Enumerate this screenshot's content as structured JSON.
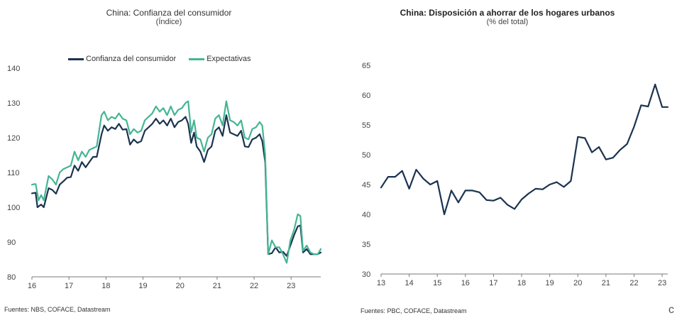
{
  "chart_data": [
    {
      "type": "line",
      "title": "China: Confianza del consumidor",
      "subtitle": "(Índice)",
      "source": "Fuentes: NBS, COFACE, Datastream",
      "ylim": [
        80,
        140
      ],
      "yticks": [
        80,
        90,
        100,
        110,
        120,
        130,
        140
      ],
      "xlim": [
        2016.0,
        2023.8
      ],
      "xticks": [
        {
          "label": "16",
          "x": 2016
        },
        {
          "label": "17",
          "x": 2017
        },
        {
          "label": "18",
          "x": 2018
        },
        {
          "label": "19",
          "x": 2019
        },
        {
          "label": "20",
          "x": 2020
        },
        {
          "label": "21",
          "x": 2021
        },
        {
          "label": "22",
          "x": 2022
        },
        {
          "label": "23",
          "x": 2023
        }
      ],
      "legend_position": "top",
      "grid": false,
      "series": [
        {
          "name": "Confianza del consumidor",
          "color": "#1b3350",
          "points": [
            [
              2016.0,
              104.0
            ],
            [
              2016.1,
              104.2
            ],
            [
              2016.15,
              100.0
            ],
            [
              2016.25,
              100.8
            ],
            [
              2016.32,
              100.0
            ],
            [
              2016.45,
              105.5
            ],
            [
              2016.55,
              105.0
            ],
            [
              2016.65,
              103.9
            ],
            [
              2016.75,
              106.5
            ],
            [
              2016.85,
              107.5
            ],
            [
              2016.95,
              108.5
            ],
            [
              2017.05,
              108.7
            ],
            [
              2017.15,
              112.0
            ],
            [
              2017.25,
              110.5
            ],
            [
              2017.35,
              113.0
            ],
            [
              2017.45,
              111.5
            ],
            [
              2017.55,
              113.0
            ],
            [
              2017.65,
              114.5
            ],
            [
              2017.75,
              114.5
            ],
            [
              2017.88,
              121.0
            ],
            [
              2017.95,
              123.5
            ],
            [
              2018.05,
              122.0
            ],
            [
              2018.15,
              123.0
            ],
            [
              2018.25,
              122.5
            ],
            [
              2018.35,
              124.0
            ],
            [
              2018.45,
              122.3
            ],
            [
              2018.55,
              122.5
            ],
            [
              2018.65,
              118.0
            ],
            [
              2018.75,
              119.5
            ],
            [
              2018.85,
              118.5
            ],
            [
              2018.95,
              119.0
            ],
            [
              2019.05,
              122.0
            ],
            [
              2019.15,
              123.0
            ],
            [
              2019.25,
              124.0
            ],
            [
              2019.35,
              125.5
            ],
            [
              2019.45,
              124.0
            ],
            [
              2019.55,
              125.0
            ],
            [
              2019.65,
              123.5
            ],
            [
              2019.75,
              125.5
            ],
            [
              2019.85,
              123.0
            ],
            [
              2019.95,
              124.5
            ],
            [
              2020.05,
              125.0
            ],
            [
              2020.15,
              126.0
            ],
            [
              2020.22,
              124.0
            ],
            [
              2020.3,
              118.5
            ],
            [
              2020.38,
              121.5
            ],
            [
              2020.45,
              117.5
            ],
            [
              2020.55,
              116.0
            ],
            [
              2020.65,
              113.0
            ],
            [
              2020.75,
              116.5
            ],
            [
              2020.85,
              117.5
            ],
            [
              2020.95,
              122.0
            ],
            [
              2021.05,
              123.0
            ],
            [
              2021.15,
              120.5
            ],
            [
              2021.25,
              126.5
            ],
            [
              2021.35,
              121.5
            ],
            [
              2021.45,
              121.0
            ],
            [
              2021.55,
              120.5
            ],
            [
              2021.65,
              122.0
            ],
            [
              2021.75,
              117.5
            ],
            [
              2021.85,
              117.3
            ],
            [
              2021.95,
              119.5
            ],
            [
              2022.05,
              120.0
            ],
            [
              2022.15,
              121.0
            ],
            [
              2022.22,
              119.0
            ],
            [
              2022.3,
              113.0
            ],
            [
              2022.38,
              86.5
            ],
            [
              2022.48,
              86.8
            ],
            [
              2022.58,
              88.5
            ],
            [
              2022.68,
              87.0
            ],
            [
              2022.78,
              87.2
            ],
            [
              2022.88,
              86.0
            ],
            [
              2022.98,
              89.0
            ],
            [
              2023.08,
              92.0
            ],
            [
              2023.18,
              94.5
            ],
            [
              2023.25,
              94.8
            ],
            [
              2023.32,
              87.0
            ],
            [
              2023.42,
              88.0
            ],
            [
              2023.52,
              86.5
            ],
            [
              2023.62,
              86.5
            ],
            [
              2023.72,
              86.5
            ],
            [
              2023.8,
              87.0
            ]
          ]
        },
        {
          "name": "Expectativas",
          "color": "#45b594",
          "points": [
            [
              2016.0,
              106.5
            ],
            [
              2016.1,
              106.7
            ],
            [
              2016.18,
              102.0
            ],
            [
              2016.25,
              103.5
            ],
            [
              2016.32,
              102.0
            ],
            [
              2016.45,
              109.0
            ],
            [
              2016.55,
              108.0
            ],
            [
              2016.65,
              106.5
            ],
            [
              2016.75,
              110.0
            ],
            [
              2016.85,
              111.0
            ],
            [
              2016.95,
              111.5
            ],
            [
              2017.05,
              112.0
            ],
            [
              2017.15,
              116.0
            ],
            [
              2017.25,
              113.5
            ],
            [
              2017.35,
              116.0
            ],
            [
              2017.45,
              114.5
            ],
            [
              2017.55,
              116.5
            ],
            [
              2017.65,
              117.0
            ],
            [
              2017.75,
              117.5
            ],
            [
              2017.88,
              126.5
            ],
            [
              2017.95,
              127.5
            ],
            [
              2018.05,
              125.0
            ],
            [
              2018.15,
              126.0
            ],
            [
              2018.25,
              125.5
            ],
            [
              2018.35,
              127.0
            ],
            [
              2018.45,
              125.5
            ],
            [
              2018.55,
              125.0
            ],
            [
              2018.65,
              121.0
            ],
            [
              2018.75,
              122.5
            ],
            [
              2018.85,
              121.5
            ],
            [
              2018.95,
              122.0
            ],
            [
              2019.05,
              125.0
            ],
            [
              2019.15,
              126.0
            ],
            [
              2019.25,
              127.0
            ],
            [
              2019.35,
              129.0
            ],
            [
              2019.45,
              127.5
            ],
            [
              2019.55,
              128.5
            ],
            [
              2019.65,
              126.5
            ],
            [
              2019.75,
              129.0
            ],
            [
              2019.85,
              126.5
            ],
            [
              2019.95,
              128.0
            ],
            [
              2020.05,
              128.5
            ],
            [
              2020.15,
              130.0
            ],
            [
              2020.22,
              130.5
            ],
            [
              2020.3,
              121.5
            ],
            [
              2020.38,
              125.0
            ],
            [
              2020.45,
              120.0
            ],
            [
              2020.55,
              119.5
            ],
            [
              2020.65,
              116.0
            ],
            [
              2020.75,
              120.0
            ],
            [
              2020.85,
              121.0
            ],
            [
              2020.95,
              125.5
            ],
            [
              2021.05,
              126.5
            ],
            [
              2021.15,
              123.5
            ],
            [
              2021.25,
              130.5
            ],
            [
              2021.35,
              125.0
            ],
            [
              2021.45,
              124.5
            ],
            [
              2021.55,
              123.5
            ],
            [
              2021.65,
              125.0
            ],
            [
              2021.75,
              120.0
            ],
            [
              2021.85,
              119.5
            ],
            [
              2021.95,
              122.5
            ],
            [
              2022.05,
              123.0
            ],
            [
              2022.15,
              124.5
            ],
            [
              2022.22,
              123.5
            ],
            [
              2022.3,
              115.0
            ],
            [
              2022.38,
              86.5
            ],
            [
              2022.48,
              90.5
            ],
            [
              2022.58,
              88.5
            ],
            [
              2022.68,
              88.5
            ],
            [
              2022.78,
              86.5
            ],
            [
              2022.88,
              84.0
            ],
            [
              2022.98,
              90.5
            ],
            [
              2023.08,
              93.5
            ],
            [
              2023.18,
              98.0
            ],
            [
              2023.25,
              97.5
            ],
            [
              2023.32,
              87.5
            ],
            [
              2023.42,
              89.0
            ],
            [
              2023.52,
              87.0
            ],
            [
              2023.62,
              86.5
            ],
            [
              2023.72,
              86.5
            ],
            [
              2023.8,
              88.0
            ]
          ]
        }
      ]
    },
    {
      "type": "line",
      "title": "China: Disposición a ahorrar de los hogares urbanos",
      "subtitle": "(% del total)",
      "source": "Fuentes: PBC, COFACE, Datastream",
      "ylim": [
        30,
        65
      ],
      "yticks": [
        30,
        35,
        40,
        45,
        50,
        55,
        60,
        65
      ],
      "xlim": [
        2013.0,
        2023.2
      ],
      "xticks": [
        {
          "label": "13",
          "x": 2013
        },
        {
          "label": "14",
          "x": 2014
        },
        {
          "label": "15",
          "x": 2015
        },
        {
          "label": "16",
          "x": 2016
        },
        {
          "label": "17",
          "x": 2017
        },
        {
          "label": "18",
          "x": 2018
        },
        {
          "label": "19",
          "x": 2019
        },
        {
          "label": "20",
          "x": 2020
        },
        {
          "label": "21",
          "x": 2021
        },
        {
          "label": "22",
          "x": 2022
        },
        {
          "label": "23",
          "x": 2023
        }
      ],
      "grid": false,
      "series": [
        {
          "name": "",
          "color": "#1b3350",
          "points": [
            [
              2013.0,
              44.5
            ],
            [
              2013.25,
              46.3
            ],
            [
              2013.5,
              46.3
            ],
            [
              2013.75,
              47.3
            ],
            [
              2014.0,
              44.3
            ],
            [
              2014.25,
              47.5
            ],
            [
              2014.5,
              46.0
            ],
            [
              2014.75,
              45.0
            ],
            [
              2015.0,
              45.6
            ],
            [
              2015.25,
              40.0
            ],
            [
              2015.5,
              44.0
            ],
            [
              2015.75,
              42.0
            ],
            [
              2016.0,
              44.0
            ],
            [
              2016.25,
              44.0
            ],
            [
              2016.5,
              43.7
            ],
            [
              2016.75,
              42.4
            ],
            [
              2017.0,
              42.3
            ],
            [
              2017.25,
              42.8
            ],
            [
              2017.5,
              41.6
            ],
            [
              2017.75,
              40.9
            ],
            [
              2018.0,
              42.5
            ],
            [
              2018.25,
              43.5
            ],
            [
              2018.5,
              44.3
            ],
            [
              2018.75,
              44.2
            ],
            [
              2019.0,
              45.0
            ],
            [
              2019.25,
              45.4
            ],
            [
              2019.5,
              44.6
            ],
            [
              2019.75,
              45.6
            ],
            [
              2020.0,
              53.0
            ],
            [
              2020.25,
              52.8
            ],
            [
              2020.5,
              50.4
            ],
            [
              2020.75,
              51.3
            ],
            [
              2021.0,
              49.2
            ],
            [
              2021.25,
              49.5
            ],
            [
              2021.5,
              50.8
            ],
            [
              2021.75,
              51.8
            ],
            [
              2022.0,
              54.7
            ],
            [
              2022.25,
              58.3
            ],
            [
              2022.5,
              58.1
            ],
            [
              2022.75,
              61.8
            ],
            [
              2023.0,
              58.0
            ],
            [
              2023.2,
              58.0
            ]
          ]
        }
      ]
    }
  ]
}
